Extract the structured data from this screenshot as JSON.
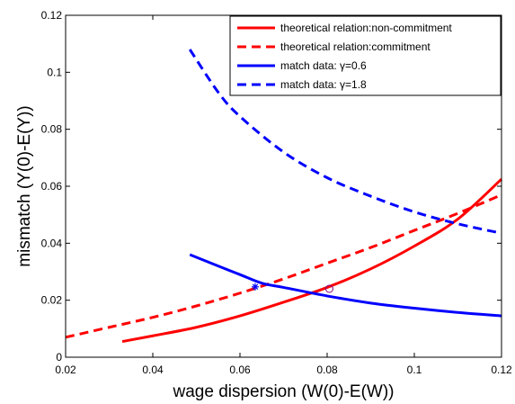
{
  "chart_data": {
    "type": "line",
    "title": "",
    "xlabel": "wage dispersion (W(0)-E(W))",
    "ylabel": "mismatch (Y(0)-E(Y))",
    "xlim": [
      0.02,
      0.12
    ],
    "ylim": [
      0,
      0.12
    ],
    "xticks": [
      0.02,
      0.04,
      0.06,
      0.08,
      0.1,
      0.12
    ],
    "xtick_labels": [
      "0.02",
      "0.04",
      "0.06",
      "0.08",
      "0.1",
      "0.12"
    ],
    "yticks": [
      0,
      0.02,
      0.04,
      0.06,
      0.08,
      0.1,
      0.12
    ],
    "ytick_labels": [
      "0",
      "0.02",
      "0.04",
      "0.06",
      "0.08",
      "0.1",
      "0.12"
    ],
    "grid": false,
    "legend_position": "top-right",
    "series": [
      {
        "name": "theoretical relation:non-commitment",
        "color": "#ff0000",
        "dash": "solid",
        "x": [
          0.033,
          0.04,
          0.05,
          0.06,
          0.07,
          0.08,
          0.09,
          0.1,
          0.11,
          0.12
        ],
        "y": [
          0.0055,
          0.0075,
          0.0105,
          0.0145,
          0.0193,
          0.0245,
          0.031,
          0.039,
          0.0485,
          0.0625
        ]
      },
      {
        "name": "theoretical relation:commitment",
        "color": "#ff0000",
        "dash": "dashed",
        "x": [
          0.02,
          0.03,
          0.04,
          0.05,
          0.06,
          0.07,
          0.08,
          0.09,
          0.1,
          0.11,
          0.12
        ],
        "y": [
          0.007,
          0.0105,
          0.014,
          0.018,
          0.0225,
          0.0275,
          0.033,
          0.0385,
          0.0445,
          0.0505,
          0.057
        ]
      },
      {
        "name": "match data:  γ=0.6",
        "color": "#0000ff",
        "dash": "solid",
        "x": [
          0.0485,
          0.055,
          0.06,
          0.065,
          0.07,
          0.08,
          0.09,
          0.1,
          0.11,
          0.12
        ],
        "y": [
          0.036,
          0.032,
          0.029,
          0.026,
          0.0245,
          0.0215,
          0.019,
          0.0172,
          0.0157,
          0.0145
        ]
      },
      {
        "name": "match data:  γ=1.8",
        "color": "#0000ff",
        "dash": "dashed",
        "x": [
          0.0485,
          0.055,
          0.06,
          0.07,
          0.08,
          0.09,
          0.1,
          0.11,
          0.12
        ],
        "y": [
          0.108,
          0.093,
          0.0845,
          0.072,
          0.063,
          0.0565,
          0.051,
          0.0468,
          0.0435
        ]
      }
    ],
    "markers": [
      {
        "shape": "star",
        "color": "#0000ff",
        "x": 0.0635,
        "y": 0.0247
      },
      {
        "shape": "circle",
        "color": "#800080",
        "x": 0.0805,
        "y": 0.024
      }
    ]
  }
}
